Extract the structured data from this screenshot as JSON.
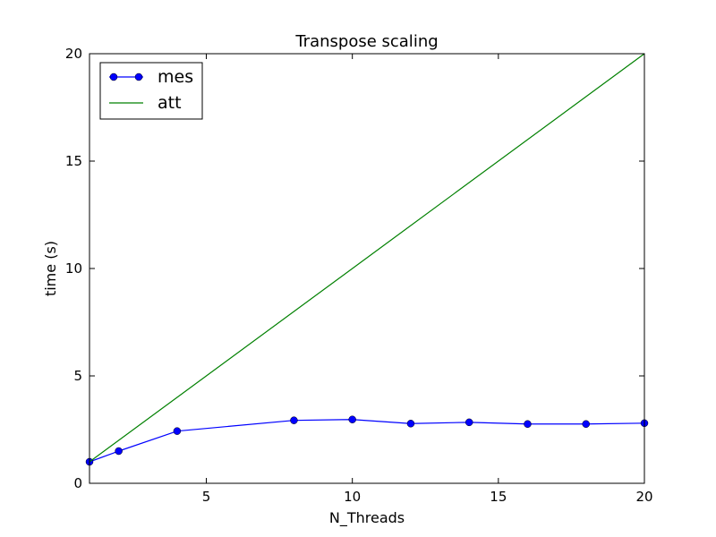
{
  "chart_data": {
    "type": "line",
    "title": "Transpose scaling",
    "xlabel": "N_Threads",
    "ylabel": "time (s)",
    "xlim": [
      1,
      20
    ],
    "ylim": [
      0,
      20
    ],
    "xticks": [
      5,
      10,
      15,
      20
    ],
    "yticks": [
      0,
      5,
      10,
      15,
      20
    ],
    "grid": false,
    "legend": "top-left",
    "series": [
      {
        "name": "mes",
        "color": "#0000ff",
        "marker": "circle",
        "x": [
          1,
          2,
          4,
          8,
          10,
          12,
          14,
          16,
          18,
          20
        ],
        "y": [
          1.0,
          1.5,
          2.43,
          2.93,
          2.97,
          2.78,
          2.84,
          2.76,
          2.76,
          2.8
        ]
      },
      {
        "name": "att",
        "color": "#008000",
        "marker": "none",
        "x": [
          1,
          20
        ],
        "y": [
          1,
          20
        ]
      }
    ]
  }
}
